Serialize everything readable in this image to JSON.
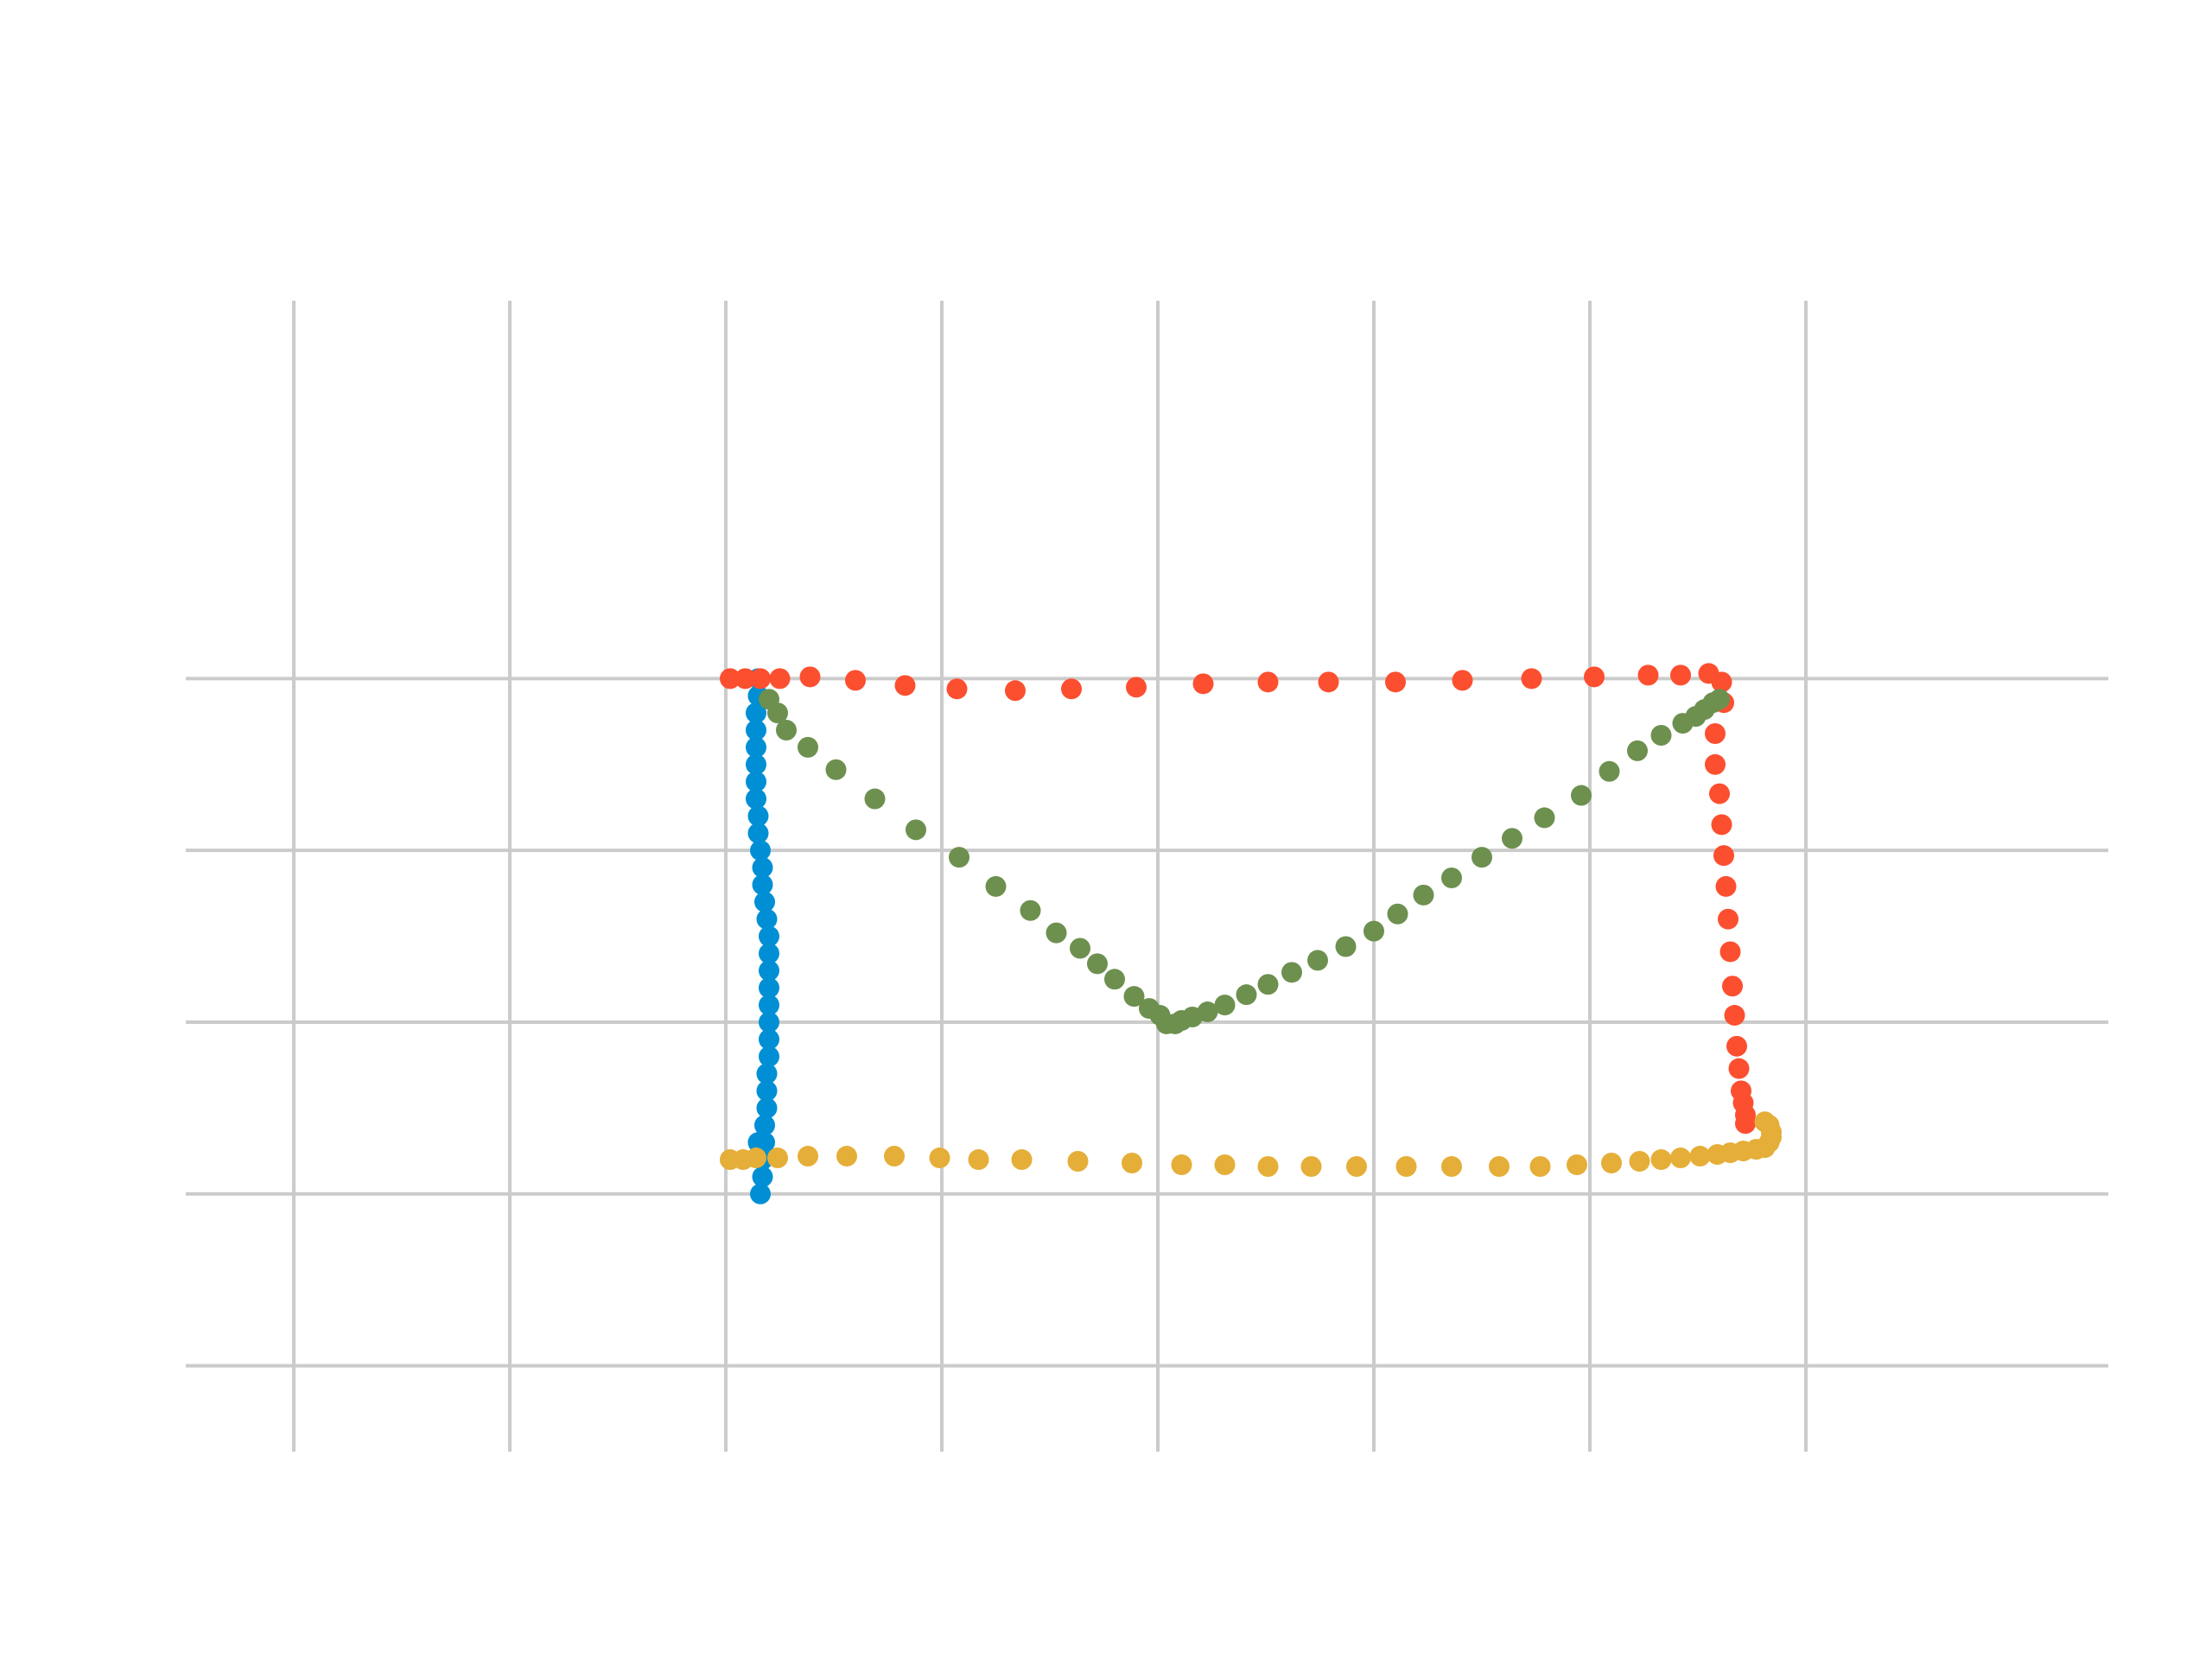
{
  "chart_data": {
    "type": "scatter",
    "title": "",
    "xlabel": "",
    "ylabel": "",
    "xlim": [
      -0.5,
      8.4
    ],
    "ylim": [
      -0.5,
      6.2
    ],
    "grid": true,
    "legend": "none",
    "xticks": [
      0,
      1,
      2,
      3,
      4,
      5,
      6,
      7
    ],
    "yticks": [
      0,
      1,
      2,
      3,
      4
    ],
    "series": [
      {
        "color": "#008fd5",
        "x": [
          2.15,
          2.15,
          2.14,
          2.14,
          2.14,
          2.14,
          2.14,
          2.14,
          2.15,
          2.15,
          2.16,
          2.17,
          2.17,
          2.18,
          2.19,
          2.2,
          2.2,
          2.2,
          2.2,
          2.2,
          2.2,
          2.2,
          2.2,
          2.19,
          2.19,
          2.19,
          2.18,
          2.18,
          2.17,
          2.17,
          2.16,
          2.15
        ],
        "y": [
          4.0,
          3.9,
          3.8,
          3.7,
          3.6,
          3.5,
          3.4,
          3.3,
          3.2,
          3.1,
          3.0,
          2.9,
          2.8,
          2.7,
          2.6,
          2.5,
          2.4,
          2.3,
          2.2,
          2.1,
          2.0,
          1.9,
          1.8,
          1.7,
          1.6,
          1.5,
          1.4,
          1.3,
          1.2,
          1.1,
          1.0,
          1.3
        ]
      },
      {
        "color": "#fc4f30",
        "x": [
          2.02,
          2.09,
          2.16,
          2.25,
          2.39,
          2.6,
          2.83,
          3.07,
          3.34,
          3.6,
          3.9,
          4.21,
          4.51,
          4.79,
          5.1,
          5.41,
          5.73,
          6.02,
          6.27,
          6.42,
          6.55,
          6.61,
          6.62,
          6.58,
          6.58,
          6.6,
          6.61,
          6.62,
          6.63,
          6.64,
          6.65,
          6.66,
          6.67,
          6.68,
          6.69,
          6.7,
          6.71,
          6.72,
          6.72
        ],
        "y": [
          4.0,
          4.0,
          4.0,
          4.0,
          4.01,
          3.99,
          3.96,
          3.94,
          3.93,
          3.94,
          3.95,
          3.97,
          3.98,
          3.98,
          3.98,
          3.99,
          4.0,
          4.01,
          4.02,
          4.02,
          4.03,
          3.98,
          3.86,
          3.68,
          3.5,
          3.33,
          3.15,
          2.97,
          2.79,
          2.6,
          2.41,
          2.21,
          2.04,
          1.86,
          1.73,
          1.6,
          1.53,
          1.46,
          1.41
        ]
      },
      {
        "color": "#6d904f",
        "x": [
          2.2,
          2.24,
          2.28,
          2.38,
          2.51,
          2.69,
          2.88,
          3.08,
          3.25,
          3.41,
          3.53,
          3.64,
          3.72,
          3.8,
          3.89,
          3.96,
          4.01,
          4.04,
          4.08,
          4.11,
          4.16,
          4.23,
          4.31,
          4.41,
          4.51,
          4.62,
          4.74,
          4.87,
          5.0,
          5.11,
          5.23,
          5.36,
          5.5,
          5.64,
          5.79,
          5.96,
          6.09,
          6.22,
          6.33,
          6.43,
          6.49,
          6.53,
          6.57,
          6.6
        ],
        "y": [
          3.88,
          3.8,
          3.7,
          3.6,
          3.47,
          3.3,
          3.12,
          2.96,
          2.79,
          2.65,
          2.52,
          2.43,
          2.34,
          2.25,
          2.15,
          2.08,
          2.04,
          1.99,
          1.99,
          2.01,
          2.03,
          2.06,
          2.1,
          2.16,
          2.22,
          2.29,
          2.36,
          2.44,
          2.53,
          2.63,
          2.74,
          2.84,
          2.96,
          3.07,
          3.19,
          3.32,
          3.46,
          3.58,
          3.67,
          3.74,
          3.78,
          3.82,
          3.86,
          3.88
        ]
      },
      {
        "color": "#e5ae38",
        "x": [
          2.02,
          2.08,
          2.14,
          2.24,
          2.38,
          2.56,
          2.78,
          2.99,
          3.17,
          3.37,
          3.63,
          3.88,
          4.11,
          4.31,
          4.51,
          4.71,
          4.92,
          5.15,
          5.36,
          5.58,
          5.77,
          5.94,
          6.1,
          6.23,
          6.33,
          6.42,
          6.51,
          6.59,
          6.65,
          6.71,
          6.77,
          6.81,
          6.83,
          6.84,
          6.84,
          6.83,
          6.81
        ],
        "y": [
          1.2,
          1.2,
          1.21,
          1.21,
          1.22,
          1.22,
          1.22,
          1.21,
          1.2,
          1.2,
          1.19,
          1.18,
          1.17,
          1.17,
          1.16,
          1.16,
          1.16,
          1.16,
          1.16,
          1.16,
          1.16,
          1.17,
          1.18,
          1.19,
          1.2,
          1.21,
          1.22,
          1.23,
          1.24,
          1.25,
          1.26,
          1.27,
          1.3,
          1.33,
          1.36,
          1.4,
          1.42
        ]
      }
    ]
  }
}
